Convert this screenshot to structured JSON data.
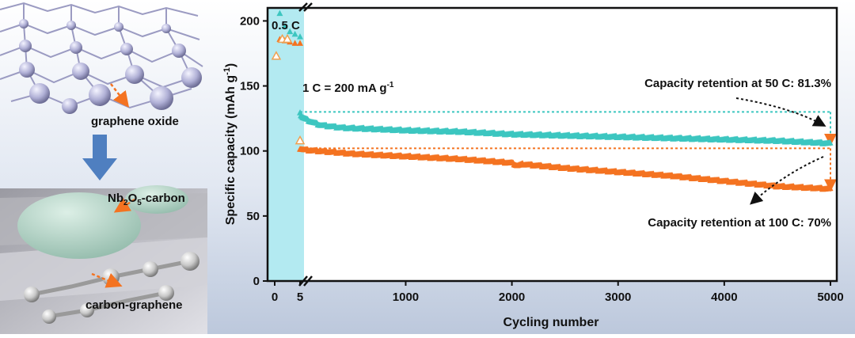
{
  "colors": {
    "teal": "#3cc6c0",
    "orange": "#f47321",
    "shade": "#a6e6ee",
    "bg_top": "#ffffff",
    "bg_bottom": "#bcc8dc"
  },
  "illustration": {
    "top_label": "graphene oxide",
    "mid_label_prefix": "Nb",
    "mid_label_sub1": "2",
    "mid_label_mid": "O",
    "mid_label_sub2": "5",
    "mid_label_suffix": "-carbon",
    "bottom_label": "carbon-graphene"
  },
  "chart_data": {
    "type": "scatter",
    "xlabel": "Cycling number",
    "ylabel_main": "Specific capacity (mAh g",
    "ylabel_sup": "-1",
    "ylabel_close": ")",
    "x_ticks": [
      "0",
      "5",
      "1000",
      "2000",
      "3000",
      "4000",
      "5000"
    ],
    "y_ticks": [
      0,
      50,
      100,
      150,
      200
    ],
    "ylim": [
      0,
      210
    ],
    "x_break": "0–5 cycles at 0.5 C shown on expanded axis, then 5–5000",
    "annot_rate_low": "0.5 C",
    "annot_rate_def_main": "1 C = 200 mA g",
    "annot_rate_def_sup": "-1",
    "series": [
      {
        "name": "50 C",
        "color": "teal",
        "initial_cycles": {
          "x": [
            1,
            2,
            3,
            4,
            5
          ],
          "values": [
            206,
            196,
            192,
            190,
            188
          ]
        },
        "long": {
          "x": [
            5,
            10,
            30,
            100,
            200,
            400,
            700,
            1000,
            1500,
            2000,
            2500,
            3000,
            3500,
            4000,
            4500,
            5000
          ],
          "values": [
            130,
            128,
            126,
            123,
            120,
            118,
            117,
            116,
            115,
            113,
            112,
            111,
            110,
            109,
            108,
            106
          ]
        },
        "retention_label": "Capacity retention at 50 C:  81.3%",
        "ref_value": 130
      },
      {
        "name": "100 C",
        "color": "orange",
        "initial_cycles": {
          "x": [
            1,
            2,
            3,
            4,
            5
          ],
          "values": [
            186,
            185,
            184,
            183,
            183
          ]
        },
        "long": {
          "x": [
            5,
            50,
            200,
            500,
            1000,
            1500,
            2000,
            2050,
            2100,
            2500,
            3000,
            3500,
            4000,
            4500,
            5000
          ],
          "values": [
            102,
            101,
            100,
            98,
            96,
            94,
            91,
            89,
            90,
            87,
            84,
            81,
            77,
            73,
            71
          ]
        },
        "retention_label": "Capacity retention at 100 C:  70%",
        "ref_value": 102
      }
    ],
    "open_markers": {
      "x": [
        0.3,
        1.5,
        2.5,
        5
      ],
      "values": [
        173,
        186,
        186,
        108
      ]
    }
  }
}
